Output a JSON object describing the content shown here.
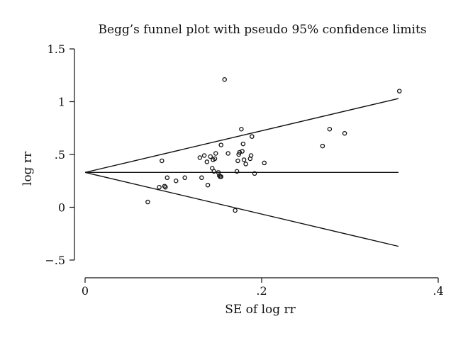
{
  "chart_data": {
    "type": "scatter",
    "title": "Begg’s funnel plot with pseudo 95% confidence limits",
    "xlabel": "SE of log rr",
    "ylabel": "log rr",
    "xlim": [
      0,
      0.4
    ],
    "ylim": [
      -0.5,
      1.5
    ],
    "x_ticks": [
      0,
      0.2,
      0.4
    ],
    "x_tick_labels": [
      "0",
      ".2",
      ".4"
    ],
    "y_ticks": [
      -0.5,
      0,
      0.5,
      1,
      1.5
    ],
    "y_tick_labels": [
      "−.5",
      "0",
      ".5",
      "1",
      "1.5"
    ],
    "pooled_estimate": 0.33,
    "pseudo_ci_limits": {
      "origin": [
        0,
        0.33
      ],
      "upper_end": [
        0.355,
        1.03
      ],
      "lower_end": [
        0.355,
        -0.37
      ]
    },
    "grid": false,
    "points": [
      {
        "x": 0.071,
        "y": 0.05
      },
      {
        "x": 0.084,
        "y": 0.19
      },
      {
        "x": 0.087,
        "y": 0.44
      },
      {
        "x": 0.09,
        "y": 0.2
      },
      {
        "x": 0.091,
        "y": 0.19
      },
      {
        "x": 0.093,
        "y": 0.28
      },
      {
        "x": 0.103,
        "y": 0.25
      },
      {
        "x": 0.113,
        "y": 0.28
      },
      {
        "x": 0.13,
        "y": 0.47
      },
      {
        "x": 0.132,
        "y": 0.28
      },
      {
        "x": 0.135,
        "y": 0.49
      },
      {
        "x": 0.138,
        "y": 0.43
      },
      {
        "x": 0.139,
        "y": 0.21
      },
      {
        "x": 0.142,
        "y": 0.48
      },
      {
        "x": 0.144,
        "y": 0.37
      },
      {
        "x": 0.145,
        "y": 0.45
      },
      {
        "x": 0.146,
        "y": 0.34
      },
      {
        "x": 0.147,
        "y": 0.46
      },
      {
        "x": 0.148,
        "y": 0.51
      },
      {
        "x": 0.151,
        "y": 0.33
      },
      {
        "x": 0.152,
        "y": 0.3
      },
      {
        "x": 0.153,
        "y": 0.29
      },
      {
        "x": 0.154,
        "y": 0.29
      },
      {
        "x": 0.154,
        "y": 0.59
      },
      {
        "x": 0.158,
        "y": 1.21
      },
      {
        "x": 0.162,
        "y": 0.51
      },
      {
        "x": 0.17,
        "y": -0.03
      },
      {
        "x": 0.172,
        "y": 0.34
      },
      {
        "x": 0.173,
        "y": 0.44
      },
      {
        "x": 0.174,
        "y": 0.5
      },
      {
        "x": 0.175,
        "y": 0.52
      },
      {
        "x": 0.177,
        "y": 0.74
      },
      {
        "x": 0.178,
        "y": 0.53
      },
      {
        "x": 0.179,
        "y": 0.6
      },
      {
        "x": 0.18,
        "y": 0.45
      },
      {
        "x": 0.182,
        "y": 0.41
      },
      {
        "x": 0.187,
        "y": 0.46
      },
      {
        "x": 0.188,
        "y": 0.49
      },
      {
        "x": 0.189,
        "y": 0.67
      },
      {
        "x": 0.192,
        "y": 0.32
      },
      {
        "x": 0.203,
        "y": 0.42
      },
      {
        "x": 0.269,
        "y": 0.58
      },
      {
        "x": 0.277,
        "y": 0.74
      },
      {
        "x": 0.294,
        "y": 0.7
      },
      {
        "x": 0.356,
        "y": 1.1
      }
    ]
  }
}
